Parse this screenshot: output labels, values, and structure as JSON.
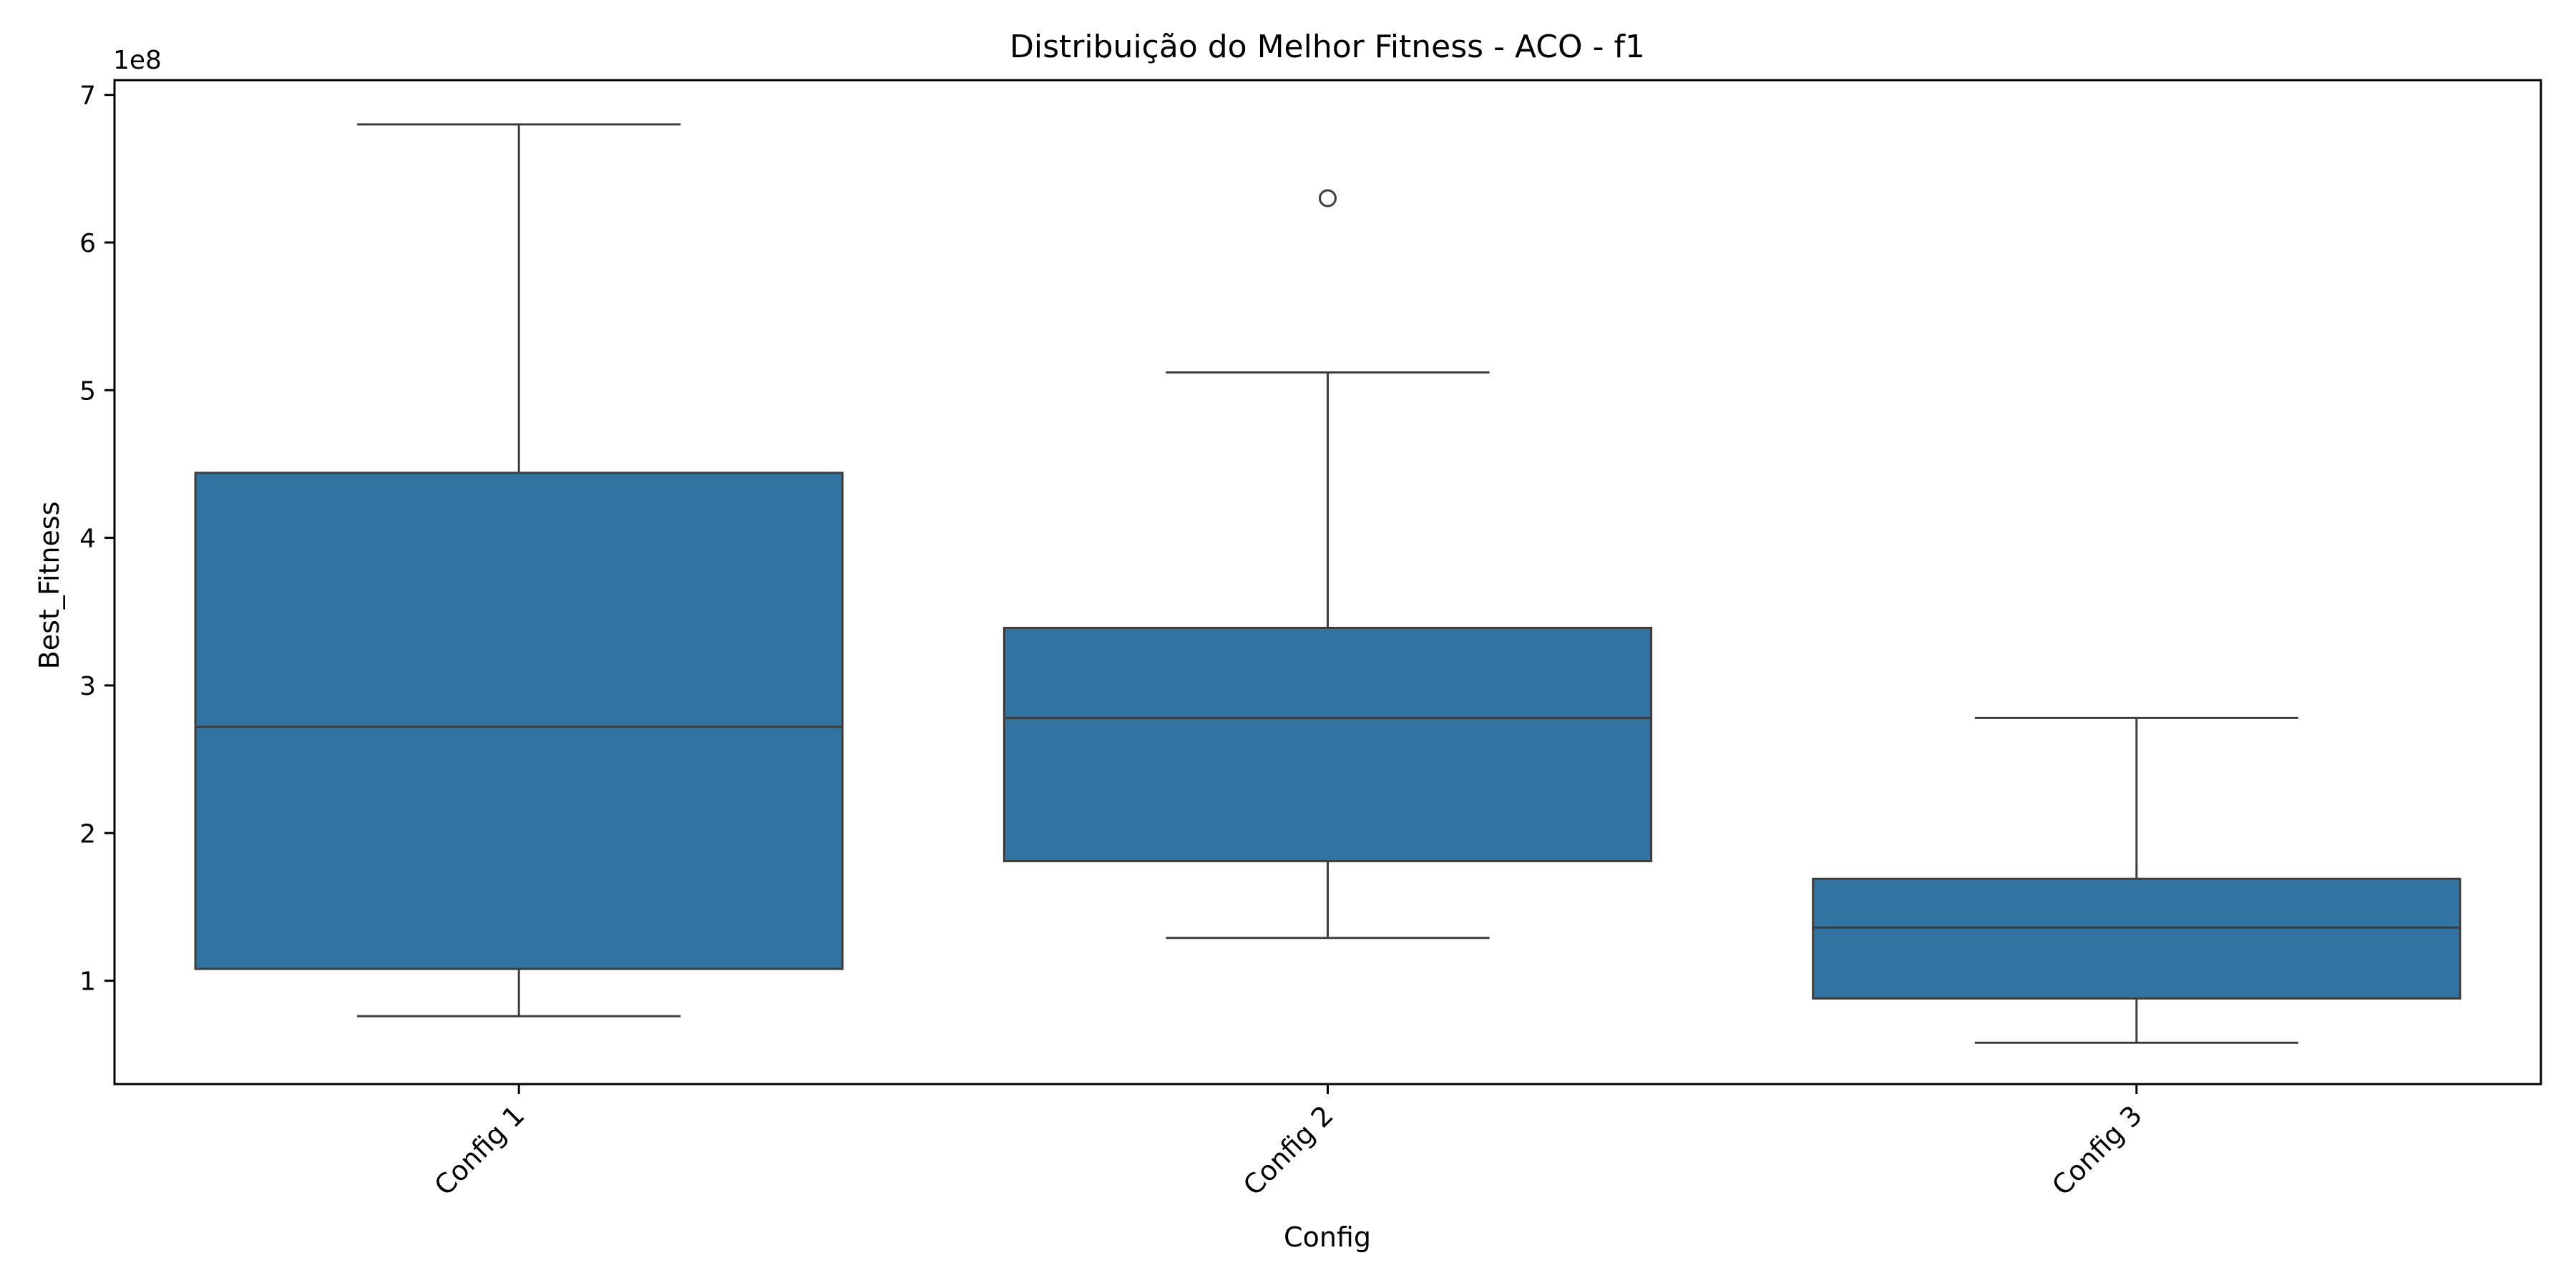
{
  "chart_data": {
    "type": "box",
    "title": "Distribuição do Melhor Fitness - ACO - f1",
    "xlabel": "Config",
    "ylabel": "Best_Fitness",
    "y_offset_label": "1e8",
    "y_scale": 100000000,
    "ylim": [
      0.3,
      7.1
    ],
    "y_ticks": [
      1,
      2,
      3,
      4,
      5,
      6,
      7
    ],
    "y_tick_labels": [
      "1",
      "2",
      "3",
      "4",
      "5",
      "6",
      "7"
    ],
    "grid": false,
    "box_color": "#3274a1",
    "edge_color": "#3d3d3d",
    "categories": [
      "Config 1",
      "Config 2",
      "Config 3"
    ],
    "boxes": [
      {
        "category": "Config 1",
        "whisker_low": 0.76,
        "q1": 1.08,
        "median": 2.72,
        "q3": 4.44,
        "whisker_high": 6.8,
        "outliers": []
      },
      {
        "category": "Config 2",
        "whisker_low": 1.29,
        "q1": 1.81,
        "median": 2.78,
        "q3": 3.39,
        "whisker_high": 5.12,
        "outliers": [
          6.3
        ]
      },
      {
        "category": "Config 3",
        "whisker_low": 0.58,
        "q1": 0.88,
        "median": 1.36,
        "q3": 1.69,
        "whisker_high": 2.78,
        "outliers": []
      }
    ]
  }
}
